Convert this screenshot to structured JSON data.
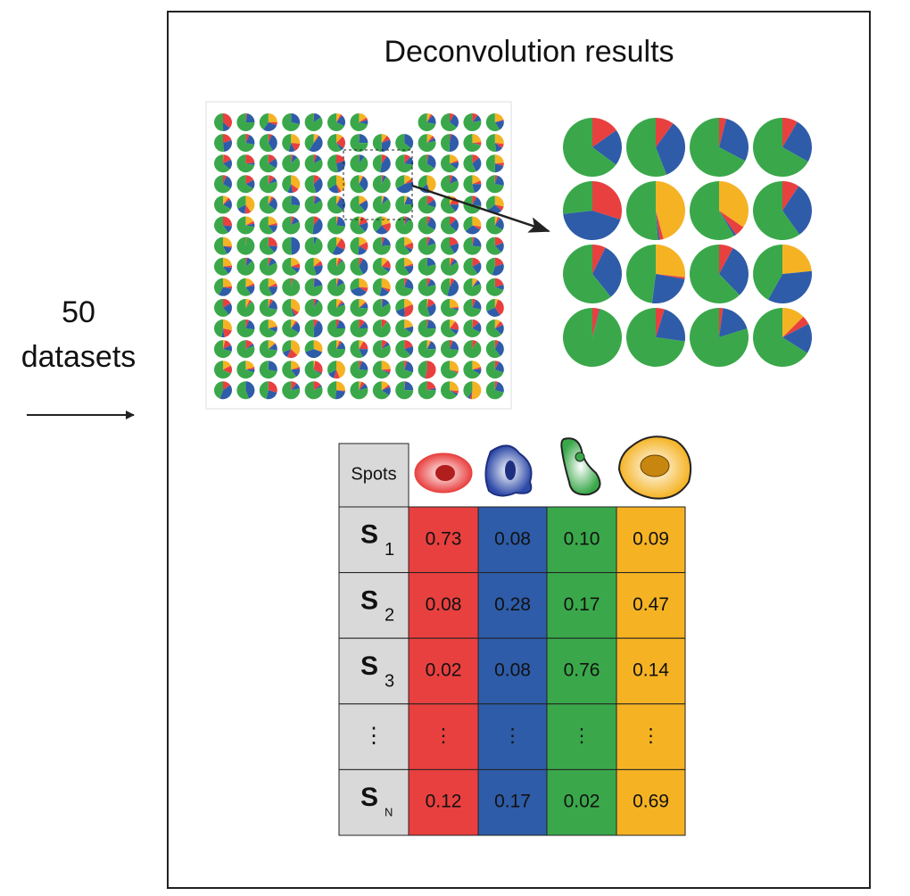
{
  "title": "Deconvolution results",
  "input": {
    "count": "50",
    "label": "datasets"
  },
  "table": {
    "header": "Spots",
    "rows": [
      {
        "label": "S",
        "sub": "1",
        "values": [
          "0.73",
          "0.08",
          "0.10",
          "0.09"
        ]
      },
      {
        "label": "S",
        "sub": "2",
        "values": [
          "0.08",
          "0.28",
          "0.17",
          "0.47"
        ]
      },
      {
        "label": "S",
        "sub": "3",
        "values": [
          "0.02",
          "0.08",
          "0.76",
          "0.14"
        ]
      },
      {
        "label": "⋮",
        "values": [
          "⋮",
          "⋮",
          "⋮",
          "⋮"
        ]
      },
      {
        "label": "S",
        "sub": "N",
        "values": [
          "0.12",
          "0.17",
          "0.02",
          "0.69"
        ]
      }
    ]
  }
}
